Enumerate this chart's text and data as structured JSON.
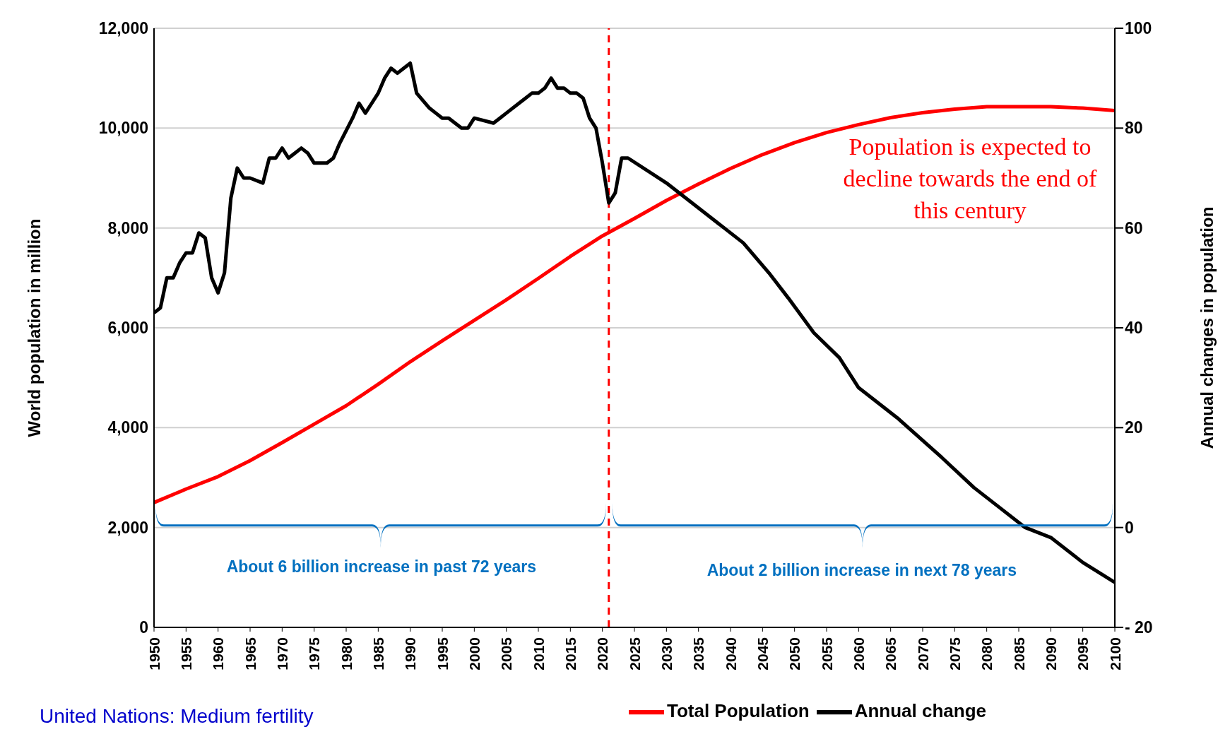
{
  "chart_data": {
    "type": "line",
    "xlabel": null,
    "ylabel": "World population in million",
    "y2label": "Annual changes in population",
    "xlim": [
      1950,
      2100
    ],
    "xticks": [
      1950,
      1955,
      1960,
      1965,
      1970,
      1975,
      1980,
      1985,
      1990,
      1995,
      2000,
      2005,
      2010,
      2015,
      2020,
      2025,
      2030,
      2035,
      2040,
      2045,
      2050,
      2055,
      2060,
      2065,
      2070,
      2075,
      2080,
      2085,
      2090,
      2095,
      2100
    ],
    "ylim": [
      0,
      12000
    ],
    "yticks": [
      0,
      {
        "value": 2000,
        "label": "2,000"
      },
      {
        "value": 4000,
        "label": "4,000"
      },
      {
        "value": 6000,
        "label": "6,000"
      },
      {
        "value": 8000,
        "label": "8,000"
      },
      {
        "value": 10000,
        "label": "10,000"
      },
      {
        "value": 12000,
        "label": "12,000"
      }
    ],
    "y2lim": [
      -20,
      100
    ],
    "y2ticks": [
      {
        "value": -20,
        "label": "- 20"
      },
      0,
      20,
      40,
      60,
      80,
      100
    ],
    "grid": "y",
    "legend": "bottom",
    "series": [
      {
        "name": "Total Population",
        "color": "#ff0000",
        "x": [
          1950,
          1955,
          1960,
          1965,
          1970,
          1975,
          1980,
          1985,
          1990,
          1995,
          2000,
          2005,
          2010,
          2015,
          2020,
          2025,
          2030,
          2035,
          2040,
          2045,
          2050,
          2055,
          2060,
          2065,
          2070,
          2075,
          2080,
          2085,
          2090,
          2095,
          2100
        ],
        "values": [
          2500,
          2770,
          3020,
          3340,
          3700,
          4070,
          4440,
          4870,
          5320,
          5740,
          6150,
          6560,
          6990,
          7430,
          7840,
          8190,
          8550,
          8880,
          9190,
          9470,
          9710,
          9910,
          10070,
          10210,
          10310,
          10380,
          10430,
          10430,
          10430,
          10400,
          10350
        ]
      },
      {
        "name": "Annual change",
        "color": "#000000",
        "axis": "y2",
        "x": [
          1950,
          1951,
          1952,
          1953,
          1954,
          1955,
          1956,
          1957,
          1958,
          1959,
          1960,
          1961,
          1962,
          1963,
          1964,
          1965,
          1967,
          1968,
          1969,
          1970,
          1971,
          1972,
          1973,
          1974,
          1975,
          1976,
          1977,
          1978,
          1979,
          1981,
          1982,
          1983,
          1984,
          1985,
          1986,
          1987,
          1988,
          1989,
          1990,
          1991,
          1993,
          1994,
          1995,
          1996,
          1997,
          1998,
          1999,
          2000,
          2003,
          2004,
          2005,
          2007,
          2008,
          2009,
          2010,
          2011,
          2012,
          2013,
          2014,
          2015,
          2016,
          2017,
          2018,
          2019,
          2020,
          2021,
          2022,
          2023,
          2024,
          2030,
          2037,
          2042,
          2046,
          2049,
          2053,
          2057,
          2060,
          2066,
          2073,
          2078,
          2082,
          2086,
          2090,
          2095,
          2100
        ],
        "values": [
          43,
          44,
          50,
          50,
          53,
          55,
          55,
          59,
          58,
          50,
          47,
          51,
          66,
          72,
          70,
          70,
          69,
          74,
          74,
          76,
          74,
          75,
          76,
          75,
          73,
          73,
          73,
          74,
          77,
          82,
          85,
          83,
          85,
          87,
          90,
          92,
          91,
          92,
          93,
          87,
          84,
          83,
          82,
          82,
          81,
          80,
          80,
          82,
          81,
          82,
          83,
          85,
          86,
          87,
          87,
          88,
          90,
          88,
          88,
          87,
          87,
          86,
          82,
          80,
          73,
          65,
          67,
          74,
          74,
          69,
          62,
          57,
          51,
          46,
          39,
          34,
          28,
          22,
          14,
          8,
          4,
          0,
          -2,
          -7,
          -11
        ]
      }
    ],
    "ref_lines": [
      {
        "axis": "x",
        "value": 2021,
        "color": "#ff0000",
        "line_style": "dashed"
      }
    ],
    "annotations": [
      "About 6 billion increase in past 72 years",
      "About 2 billion increase in next 78 years",
      "Population is expected to decline towards the end of this century",
      "United Nations: Medium fertility"
    ]
  }
}
